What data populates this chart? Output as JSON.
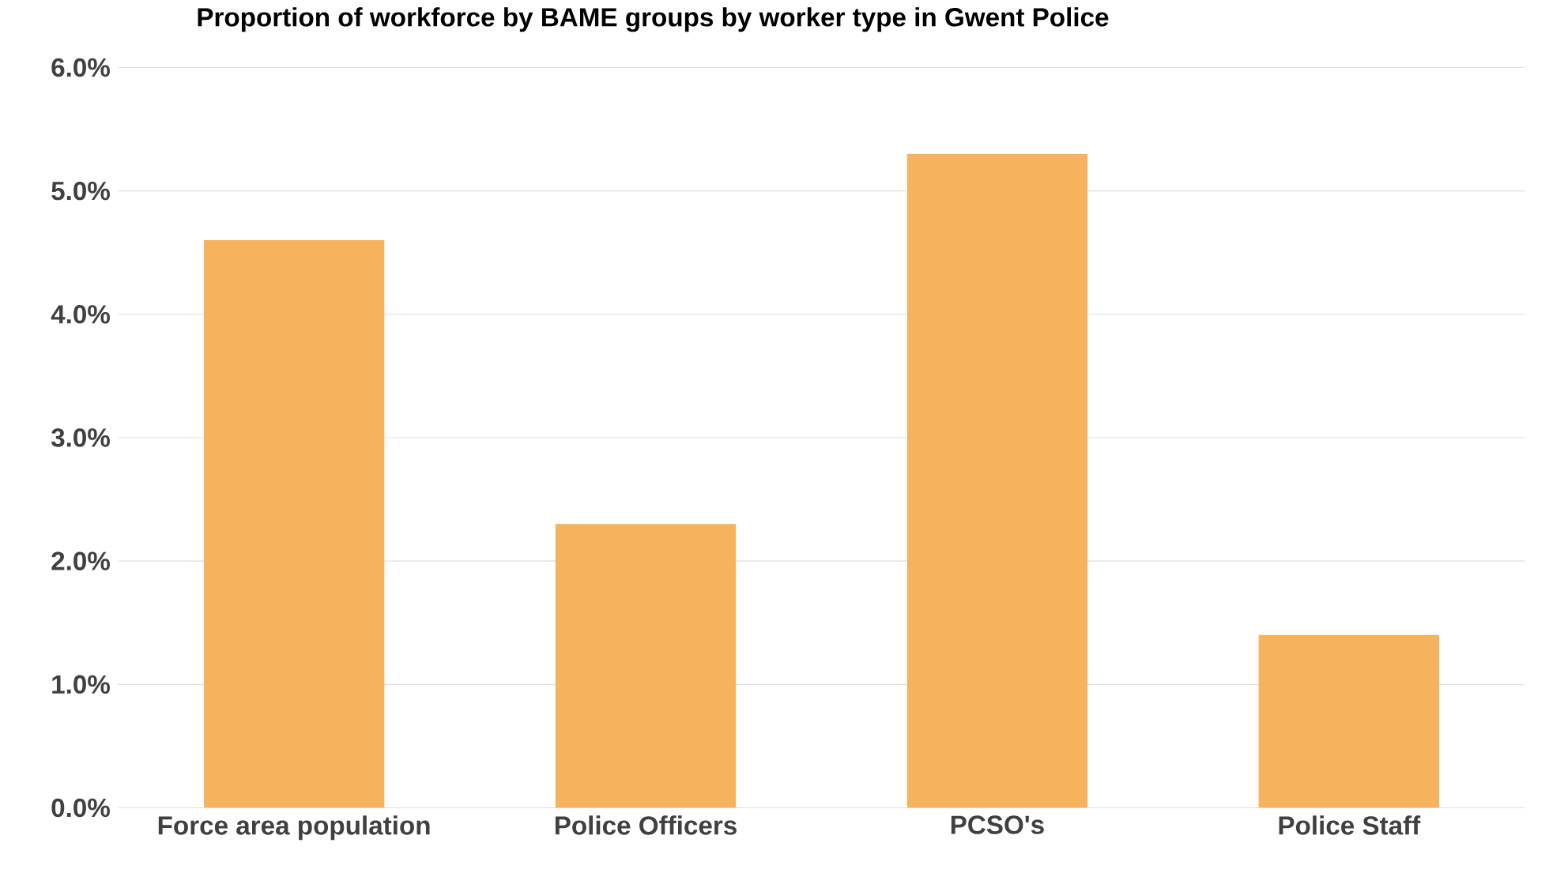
{
  "chart_data": {
    "type": "bar",
    "title": "Proportion of workforce by BAME groups by worker type in Gwent Police",
    "categories": [
      "Force area population",
      "Police Officers",
      "PCSO's",
      "Police Staff"
    ],
    "values": [
      4.6,
      2.3,
      5.3,
      1.4
    ],
    "color": "#f6b25c",
    "ylim": [
      0,
      6
    ],
    "yticks": [
      {
        "value": 0,
        "label": "0.0%"
      },
      {
        "value": 1,
        "label": "1.0%"
      },
      {
        "value": 2,
        "label": "2.0%"
      },
      {
        "value": 3,
        "label": "3.0%"
      },
      {
        "value": 4,
        "label": "4.0%"
      },
      {
        "value": 5,
        "label": "5.0%"
      },
      {
        "value": 6,
        "label": "6.0%"
      }
    ],
    "grid": "y"
  }
}
